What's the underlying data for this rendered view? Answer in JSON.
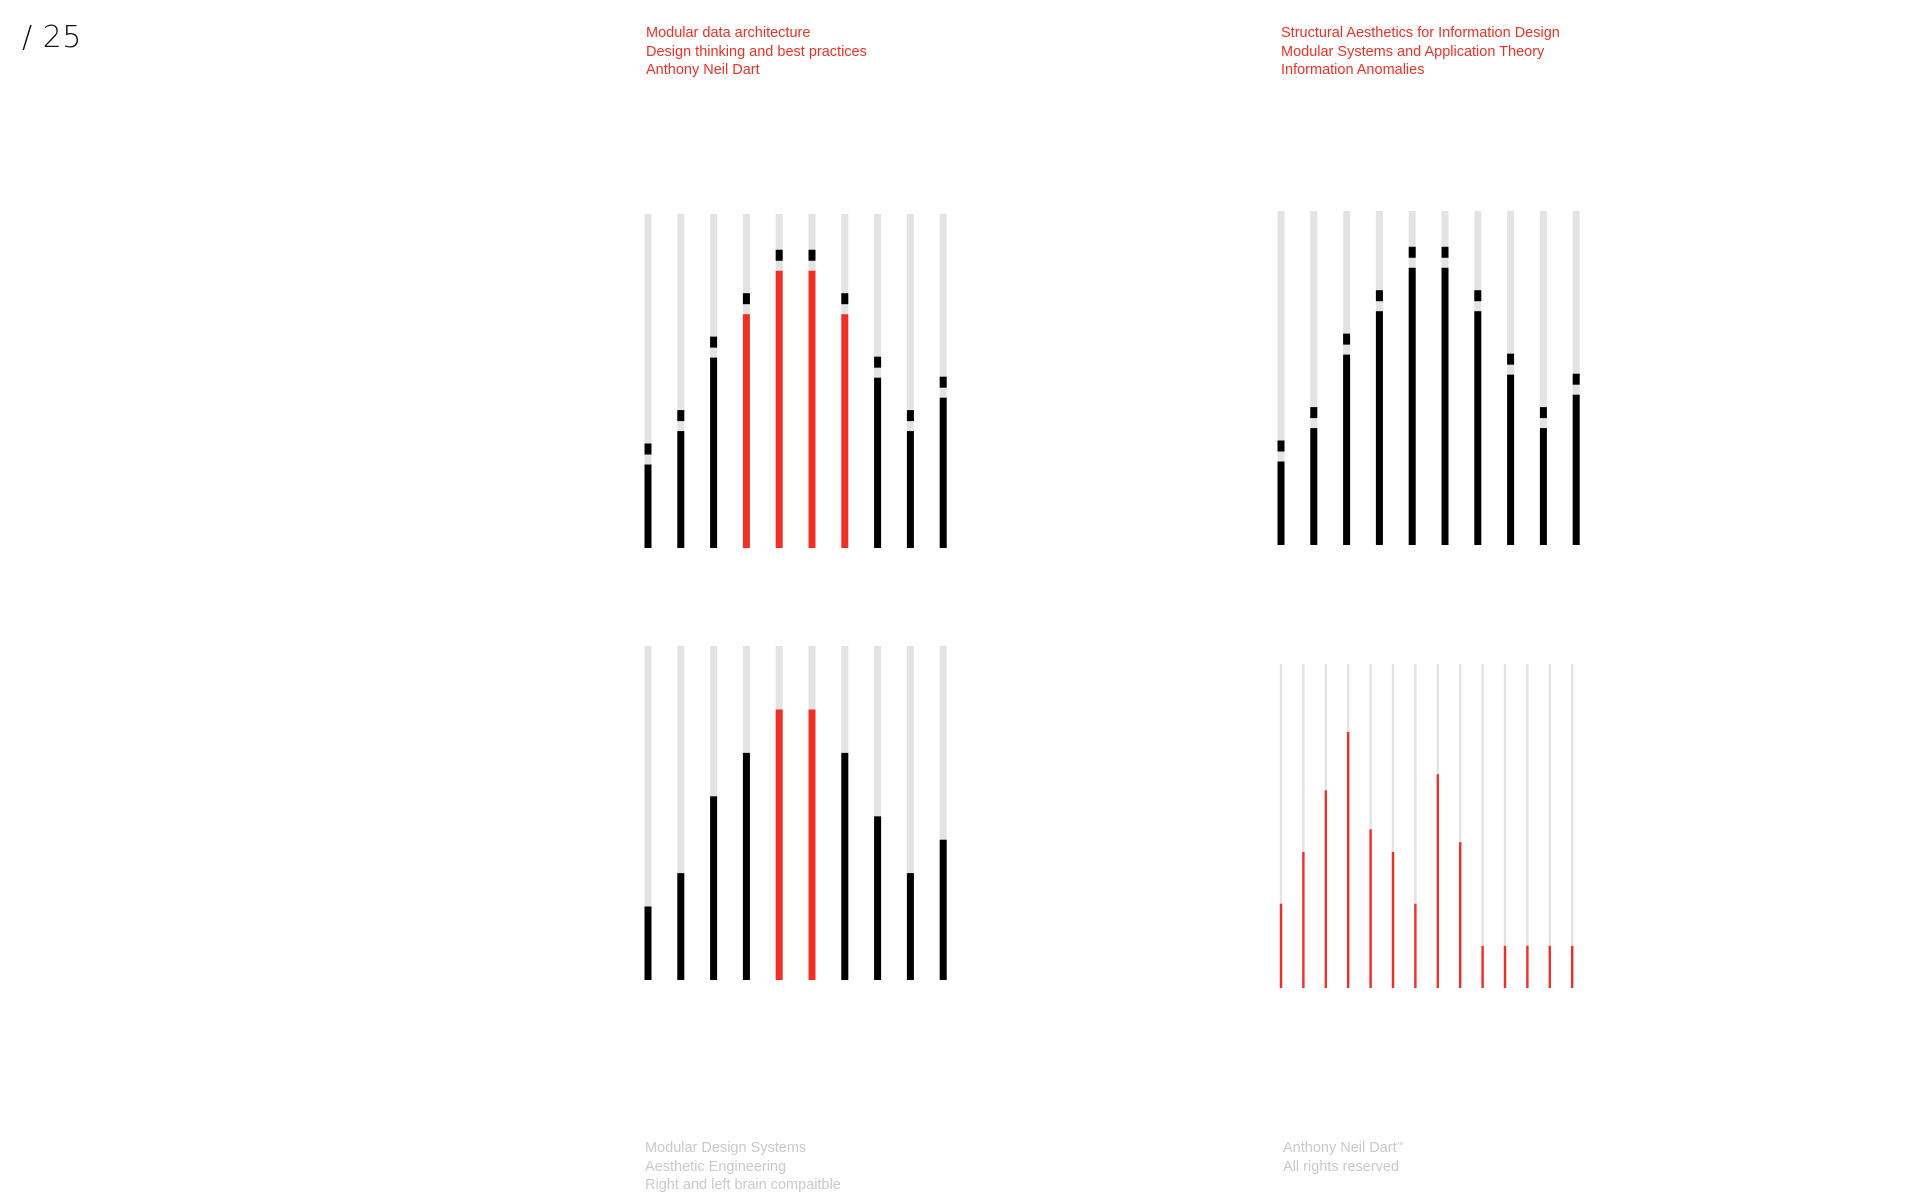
{
  "page": {
    "number": "/ 25"
  },
  "colors": {
    "accent": "#ee3124",
    "ink": "#000000",
    "track": "#e3e3e3",
    "muted": "#c9c9c9"
  },
  "header_left": {
    "lines": [
      "Modular data architecture",
      "Design thinking and best practices",
      "Anthony Neil Dart"
    ]
  },
  "header_right": {
    "lines": [
      "Structural Aesthetics for Information Design",
      "Modular Systems and Application Theory",
      "Information Anomalies"
    ]
  },
  "footer_left": {
    "lines": [
      "Modular Design Systems",
      "Aesthetic Engineering",
      "Right and left brain compaitble"
    ]
  },
  "footer_right": {
    "line1": "Anthony Neil Dart",
    "tm": "™",
    "line2": "All rights reserved"
  },
  "chart_data": [
    {
      "id": "top-left",
      "type": "bar",
      "ylim": [
        0,
        100
      ],
      "values": [
        25,
        35,
        57,
        70,
        83,
        83,
        70,
        51,
        35,
        45
      ],
      "highlight": [
        false,
        false,
        false,
        true,
        true,
        true,
        true,
        false,
        false,
        false
      ],
      "marker": true
    },
    {
      "id": "top-right",
      "type": "bar",
      "ylim": [
        0,
        100
      ],
      "values": [
        25,
        35,
        57,
        70,
        83,
        83,
        70,
        51,
        35,
        45
      ],
      "highlight": [
        false,
        false,
        false,
        false,
        false,
        false,
        false,
        false,
        false,
        false
      ],
      "marker": true
    },
    {
      "id": "bottom-left",
      "type": "bar",
      "ylim": [
        0,
        100
      ],
      "values": [
        22,
        32,
        55,
        68,
        81,
        81,
        68,
        49,
        32,
        42
      ],
      "highlight": [
        false,
        false,
        false,
        false,
        true,
        true,
        false,
        false,
        false,
        false
      ],
      "marker": false
    },
    {
      "id": "bottom-right",
      "type": "bar",
      "ylim": [
        0,
        100
      ],
      "values": [
        26,
        42,
        61,
        79,
        49,
        42,
        26,
        66,
        45,
        13,
        13,
        13,
        13,
        13
      ],
      "highlight": [
        true,
        true,
        true,
        true,
        true,
        true,
        true,
        true,
        true,
        true,
        true,
        true,
        true,
        true
      ],
      "marker": false
    }
  ]
}
